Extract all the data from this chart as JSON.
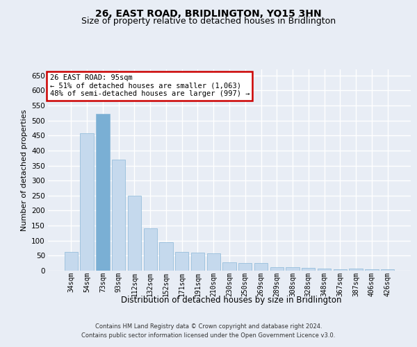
{
  "title": "26, EAST ROAD, BRIDLINGTON, YO15 3HN",
  "subtitle": "Size of property relative to detached houses in Bridlington",
  "xlabel": "Distribution of detached houses by size in Bridlington",
  "ylabel": "Number of detached properties",
  "footer_line1": "Contains HM Land Registry data © Crown copyright and database right 2024.",
  "footer_line2": "Contains public sector information licensed under the Open Government Licence v3.0.",
  "annotation_line1": "26 EAST ROAD: 95sqm",
  "annotation_line2": "← 51% of detached houses are smaller (1,063)",
  "annotation_line3": "48% of semi-detached houses are larger (997) →",
  "bar_labels": [
    "34sqm",
    "54sqm",
    "73sqm",
    "93sqm",
    "112sqm",
    "132sqm",
    "152sqm",
    "171sqm",
    "191sqm",
    "210sqm",
    "230sqm",
    "250sqm",
    "269sqm",
    "289sqm",
    "308sqm",
    "328sqm",
    "348sqm",
    "367sqm",
    "387sqm",
    "406sqm",
    "426sqm"
  ],
  "bar_values": [
    63,
    457,
    521,
    370,
    249,
    141,
    95,
    63,
    60,
    57,
    27,
    26,
    26,
    12,
    12,
    9,
    7,
    5,
    7,
    5,
    5
  ],
  "highlight_bar_index": 2,
  "bar_color_normal": "#c5d9ed",
  "bar_color_highlight": "#7aafd4",
  "bar_edge_color": "#8ab8d8",
  "ylim": [
    0,
    670
  ],
  "yticks": [
    0,
    50,
    100,
    150,
    200,
    250,
    300,
    350,
    400,
    450,
    500,
    550,
    600,
    650
  ],
  "bg_color": "#e8edf5",
  "plot_bg_color": "#e8edf5",
  "grid_color": "#ffffff",
  "annotation_box_color": "#ffffff",
  "annotation_border_color": "#cc0000",
  "title_fontsize": 10,
  "subtitle_fontsize": 9
}
